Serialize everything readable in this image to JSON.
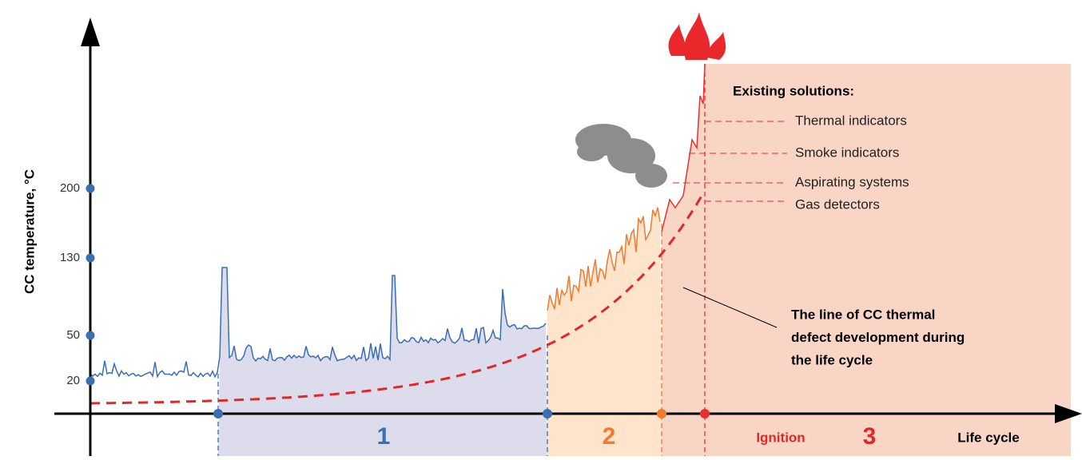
{
  "y_axis": {
    "label": "CC temperature, °C",
    "ticks": [
      20,
      50,
      130,
      200
    ]
  },
  "zones": [
    "1",
    "2",
    "3"
  ],
  "ignition": "Ignition",
  "x_axis": {
    "label": "Life cycle"
  },
  "solutions": {
    "title": "Existing solutions:",
    "items": [
      "Thermal indicators",
      "Smoke indicators",
      "Aspirating systems",
      "Gas detectors"
    ]
  },
  "annotation": [
    "The line of CC thermal",
    "defect development during",
    "the life cycle"
  ]
}
